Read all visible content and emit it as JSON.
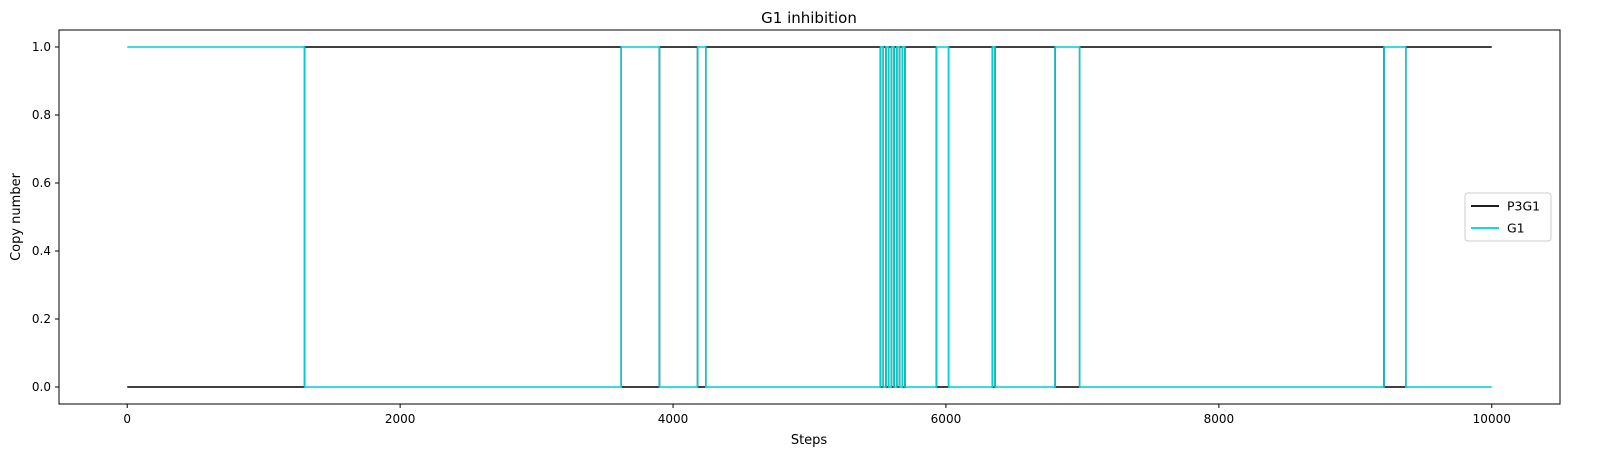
{
  "chart_data": {
    "type": "line",
    "title": "G1 inhibition",
    "xlabel": "Steps",
    "ylabel": "Copy number",
    "xlim": [
      -500,
      10500
    ],
    "ylim": [
      -0.05,
      1.05
    ],
    "xticks": [
      0,
      2000,
      4000,
      6000,
      8000,
      10000
    ],
    "xtick_labels": [
      "0",
      "2000",
      "4000",
      "6000",
      "8000",
      "10000"
    ],
    "yticks": [
      0.0,
      0.2,
      0.4,
      0.6,
      0.8,
      1.0
    ],
    "ytick_labels": [
      "0.0",
      "0.2",
      "0.4",
      "0.6",
      "0.8",
      "1.0"
    ],
    "grid": false,
    "legend_position": "center-right",
    "series": [
      {
        "name": "P3G1",
        "color": "#000000",
        "step": true,
        "x": [
          0,
          1300,
          3620,
          3900,
          4180,
          4240,
          5520,
          5540,
          5560,
          5580,
          5600,
          5620,
          5640,
          5660,
          5680,
          5700,
          5930,
          6020,
          6340,
          6360,
          6800,
          6980,
          9210,
          9370,
          10000
        ],
        "y": [
          0,
          1,
          0,
          1,
          0,
          1,
          0,
          1,
          0,
          1,
          0,
          1,
          0,
          1,
          0,
          1,
          0,
          1,
          0,
          1,
          0,
          1,
          0,
          1,
          1
        ]
      },
      {
        "name": "G1",
        "color": "#00CED1",
        "step": true,
        "x": [
          0,
          1300,
          3620,
          3900,
          4180,
          4240,
          5520,
          5540,
          5560,
          5580,
          5600,
          5620,
          5640,
          5660,
          5680,
          5700,
          5930,
          6020,
          6340,
          6360,
          6800,
          6980,
          9210,
          9370,
          10000
        ],
        "y": [
          1,
          0,
          1,
          0,
          1,
          0,
          1,
          0,
          1,
          0,
          1,
          0,
          1,
          0,
          1,
          0,
          1,
          0,
          1,
          0,
          1,
          0,
          1,
          0,
          0
        ]
      }
    ]
  }
}
